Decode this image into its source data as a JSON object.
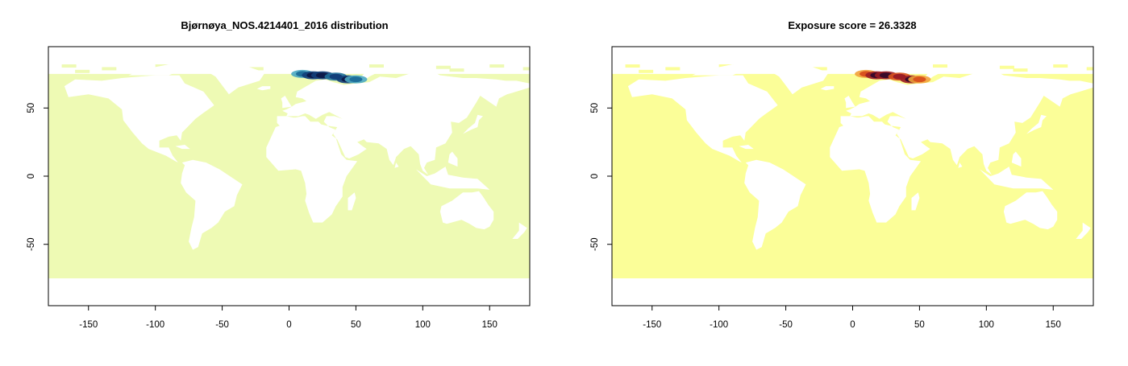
{
  "chart_data": [
    {
      "type": "heatmap",
      "title": "Bjørnøya_NOS.4214401_2016 distribution",
      "xlabel": "",
      "ylabel": "",
      "xlim": [
        -180,
        180
      ],
      "ylim": [
        -95,
        95
      ],
      "xticks": [
        -150,
        -100,
        -50,
        0,
        50,
        100,
        150
      ],
      "yticks": [
        -50,
        0,
        50
      ],
      "grid": false,
      "background_value_color": "#eefab4",
      "hotspot_colors": [
        "#4aa9c2",
        "#1f6f9a",
        "#123f7a",
        "#0c1a4a"
      ],
      "hotspot": [
        {
          "lon": 10,
          "lat": 75,
          "intensity": 0.45
        },
        {
          "lon": 18,
          "lat": 74,
          "intensity": 0.95
        },
        {
          "lon": 25,
          "lat": 74,
          "intensity": 0.8
        },
        {
          "lon": 35,
          "lat": 73,
          "intensity": 0.6
        },
        {
          "lon": 44,
          "lat": 71,
          "intensity": 0.75
        },
        {
          "lon": 50,
          "lat": 71,
          "intensity": 0.4
        }
      ]
    },
    {
      "type": "heatmap",
      "title": "Exposure score = 26.3328",
      "xlabel": "",
      "ylabel": "",
      "xlim": [
        -180,
        180
      ],
      "ylim": [
        -95,
        95
      ],
      "xticks": [
        -150,
        -100,
        -50,
        0,
        50,
        100,
        150
      ],
      "yticks": [
        -50,
        0,
        50
      ],
      "grid": false,
      "background_value_color": "#fbfe98",
      "hotspot_colors": [
        "#f2a23a",
        "#d9531e",
        "#9b1d24",
        "#3a0a2a"
      ],
      "hotspot": [
        {
          "lon": 10,
          "lat": 75,
          "intensity": 0.45
        },
        {
          "lon": 18,
          "lat": 74,
          "intensity": 0.95
        },
        {
          "lon": 25,
          "lat": 74,
          "intensity": 0.8
        },
        {
          "lon": 35,
          "lat": 73,
          "intensity": 0.6
        },
        {
          "lon": 44,
          "lat": 71,
          "intensity": 0.75
        },
        {
          "lon": 50,
          "lat": 71,
          "intensity": 0.4
        }
      ]
    }
  ]
}
